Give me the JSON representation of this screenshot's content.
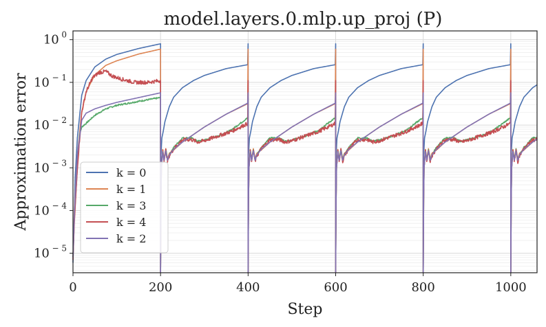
{
  "chart_data": {
    "type": "line",
    "title": "model.layers.0.mlp.up_proj (P)",
    "xlabel": "Step",
    "ylabel": "Approximation error",
    "yscale": "log",
    "xlim": [
      0,
      1060
    ],
    "ylim": [
      3.5e-06,
      1.6
    ],
    "x_ticks": [
      0,
      200,
      400,
      600,
      800,
      1000
    ],
    "x_tick_labels": [
      "0",
      "200",
      "400",
      "600",
      "800",
      "1000"
    ],
    "y_ticks": [
      {
        "value": 1,
        "base": "10",
        "exp": "0"
      },
      {
        "value": 0.1,
        "base": "10",
        "exp": "− 1"
      },
      {
        "value": 0.01,
        "base": "10",
        "exp": "− 2"
      },
      {
        "value": 0.001,
        "base": "10",
        "exp": "− 3"
      },
      {
        "value": 0.0001,
        "base": "10",
        "exp": "− 4"
      },
      {
        "value": 1e-05,
        "base": "10",
        "exp": "− 5"
      }
    ],
    "grid": true,
    "legend_position": "lower-left",
    "reset_period": 200,
    "series": [
      {
        "name": "k = 0",
        "color": "#4c72b0",
        "noise": 0,
        "first_cycle": [
          [
            0,
            6e-06
          ],
          [
            2,
            3e-05
          ],
          [
            5,
            0.0006
          ],
          [
            10,
            0.005
          ],
          [
            20,
            0.05
          ],
          [
            30,
            0.11
          ],
          [
            50,
            0.23
          ],
          [
            75,
            0.35
          ],
          [
            100,
            0.45
          ],
          [
            150,
            0.62
          ],
          [
            200,
            0.8
          ]
        ],
        "cycles": [
          [
            0,
            3e-05
          ],
          [
            1,
            0.002
          ],
          [
            3,
            0.005
          ],
          [
            6,
            0.007
          ],
          [
            10,
            0.012
          ],
          [
            20,
            0.027
          ],
          [
            30,
            0.045
          ],
          [
            50,
            0.075
          ],
          [
            75,
            0.11
          ],
          [
            100,
            0.145
          ],
          [
            150,
            0.21
          ],
          [
            200,
            0.26
          ]
        ]
      },
      {
        "name": "k = 1",
        "color": "#dd8452",
        "noise": 0,
        "first_cycle": [
          [
            0,
            8e-06
          ],
          [
            3,
            0.0001
          ],
          [
            10,
            0.002
          ],
          [
            20,
            0.02
          ],
          [
            30,
            0.06
          ],
          [
            50,
            0.15
          ],
          [
            75,
            0.25
          ],
          [
            100,
            0.32
          ],
          [
            150,
            0.46
          ],
          [
            200,
            0.6
          ]
        ],
        "cycles": [
          [
            0,
            3e-05
          ],
          [
            2,
            0.001
          ],
          [
            5,
            0.0027
          ],
          [
            8,
            0.0016
          ],
          [
            12,
            0.0028
          ],
          [
            16,
            0.0016
          ],
          [
            20,
            0.0022
          ],
          [
            30,
            0.0026
          ],
          [
            50,
            0.004
          ],
          [
            75,
            0.006
          ],
          [
            100,
            0.009
          ],
          [
            150,
            0.018
          ],
          [
            200,
            0.032
          ]
        ]
      },
      {
        "name": "k = 3",
        "color": "#55a868",
        "noise": 0.018,
        "first_cycle": [
          [
            0,
            8e-06
          ],
          [
            3,
            6e-05
          ],
          [
            10,
            0.001
          ],
          [
            15,
            0.006
          ],
          [
            20,
            0.009
          ],
          [
            30,
            0.011
          ],
          [
            50,
            0.017
          ],
          [
            75,
            0.024
          ],
          [
            100,
            0.029
          ],
          [
            150,
            0.036
          ],
          [
            200,
            0.044
          ]
        ],
        "cycles": [
          [
            0,
            3e-05
          ],
          [
            2,
            0.001
          ],
          [
            5,
            0.0026
          ],
          [
            8,
            0.0015
          ],
          [
            12,
            0.0027
          ],
          [
            16,
            0.0015
          ],
          [
            20,
            0.002
          ],
          [
            30,
            0.003
          ],
          [
            50,
            0.005
          ],
          [
            70,
            0.005
          ],
          [
            85,
            0.0042
          ],
          [
            100,
            0.0045
          ],
          [
            130,
            0.0055
          ],
          [
            160,
            0.0075
          ],
          [
            200,
            0.015
          ]
        ]
      },
      {
        "name": "k = 4",
        "color": "#c44e52",
        "noise": 0.045,
        "first_cycle": [
          [
            0,
            7e-06
          ],
          [
            3,
            5e-05
          ],
          [
            10,
            0.001
          ],
          [
            20,
            0.02
          ],
          [
            30,
            0.06
          ],
          [
            45,
            0.13
          ],
          [
            60,
            0.17
          ],
          [
            75,
            0.18
          ],
          [
            90,
            0.14
          ],
          [
            110,
            0.12
          ],
          [
            140,
            0.1
          ],
          [
            170,
            0.1
          ],
          [
            200,
            0.11
          ]
        ],
        "cycles": [
          [
            0,
            3e-05
          ],
          [
            2,
            0.001
          ],
          [
            5,
            0.0026
          ],
          [
            8,
            0.0014
          ],
          [
            12,
            0.0026
          ],
          [
            16,
            0.0014
          ],
          [
            20,
            0.0019
          ],
          [
            30,
            0.0028
          ],
          [
            50,
            0.0045
          ],
          [
            70,
            0.0046
          ],
          [
            85,
            0.004
          ],
          [
            100,
            0.0043
          ],
          [
            130,
            0.0055
          ],
          [
            160,
            0.007
          ],
          [
            200,
            0.011
          ]
        ]
      },
      {
        "name": "k = 2",
        "color": "#8172b3",
        "noise": 0,
        "first_cycle": [
          [
            0,
            8e-06
          ],
          [
            3,
            8e-05
          ],
          [
            10,
            0.002
          ],
          [
            20,
            0.013
          ],
          [
            30,
            0.019
          ],
          [
            50,
            0.024
          ],
          [
            75,
            0.029
          ],
          [
            100,
            0.034
          ],
          [
            150,
            0.044
          ],
          [
            200,
            0.057
          ]
        ],
        "cycles": [
          [
            0,
            3e-05
          ],
          [
            2,
            0.001
          ],
          [
            5,
            0.0024
          ],
          [
            8,
            0.0015
          ],
          [
            12,
            0.0025
          ],
          [
            16,
            0.0015
          ],
          [
            20,
            0.002
          ],
          [
            30,
            0.0027
          ],
          [
            50,
            0.004
          ],
          [
            75,
            0.006
          ],
          [
            100,
            0.009
          ],
          [
            150,
            0.018
          ],
          [
            200,
            0.033
          ]
        ]
      }
    ]
  }
}
